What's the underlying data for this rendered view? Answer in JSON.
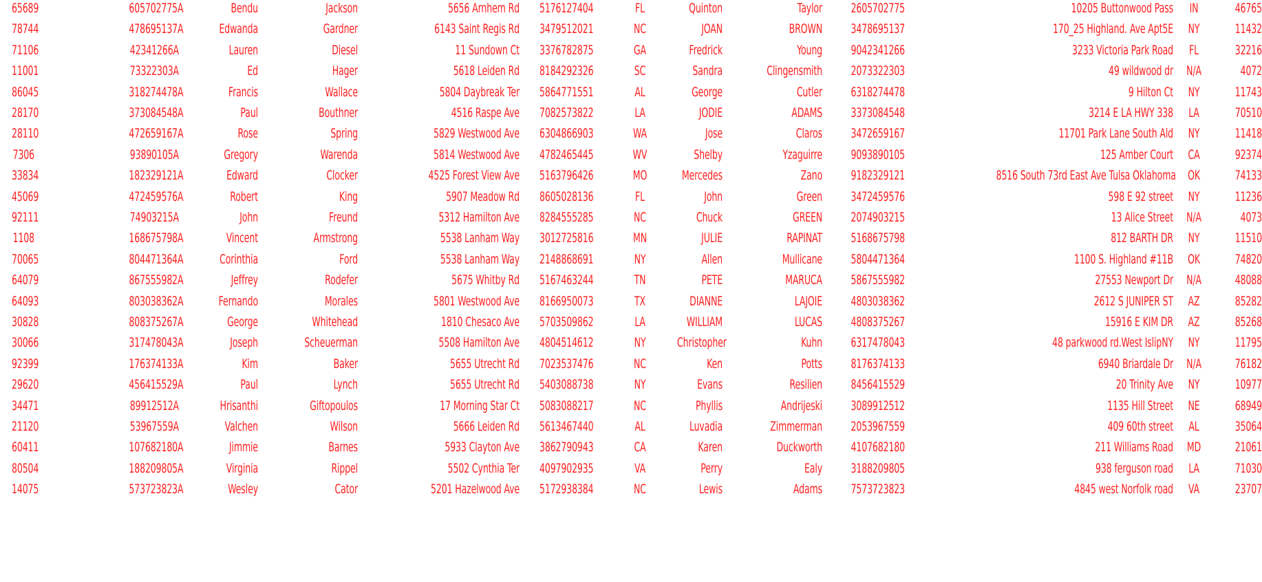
{
  "sheet": {
    "text_color": "#ff1f1f",
    "background": "#ffffff",
    "rows": [
      [
        "65689",
        "605702775A",
        "Bendu",
        "Jackson",
        "5656 Arnhem Rd",
        "5176127404",
        "FL",
        "Quinton",
        "Taylor",
        "2605702775",
        "10205 Buttonwood Pass",
        "IN",
        "46765"
      ],
      [
        "78744",
        "478695137A",
        "Edwanda",
        "Gardner",
        "6143 Saint Regis Rd",
        "3479512021",
        "NC",
        "JOAN",
        "BROWN",
        "3478695137",
        "170_25 Highland. Ave Apt5E",
        "NY",
        "11432"
      ],
      [
        "71106",
        "42341266A",
        "Lauren",
        "Diesel",
        "11 Sundown Ct",
        "3376782875",
        "GA",
        "Fredrick",
        "Young",
        "9042341266",
        "3233 Victoria Park Road",
        "FL",
        "32216"
      ],
      [
        "11001",
        "73322303A",
        "Ed",
        "Hager",
        "5618 Leiden Rd",
        "8184292326",
        "SC",
        "Sandra",
        "Clingensmith",
        "2073322303",
        "49 wildwood dr",
        "N/A",
        "4072"
      ],
      [
        "86045",
        "318274478A",
        "Francis",
        "Wallace",
        "5804 Daybreak Ter",
        "5864771551",
        "AL",
        "George",
        "Cutler",
        "6318274478",
        "9 Hilton Ct",
        "NY",
        "11743"
      ],
      [
        "28170",
        "373084548A",
        "Paul",
        "Bouthner",
        "4516 Raspe Ave",
        "7082573822",
        "LA",
        "JODIE",
        "ADAMS",
        "3373084548",
        "3214 E LA HWY 338",
        "LA",
        "70510"
      ],
      [
        "28110",
        "472659167A",
        "Rose",
        "Spring",
        "5829 Westwood Ave",
        "6304866903",
        "WA",
        "Jose",
        "Claros",
        "3472659167",
        "11701 Park Lane South  Ald",
        "NY",
        "11418"
      ],
      [
        "7306",
        "93890105A",
        "Gregory",
        "Warenda",
        "5814 Westwood Ave",
        "4782465445",
        "WV",
        "Shelby",
        "Yzaguirre",
        "9093890105",
        "125 Amber Court",
        "CA",
        "92374"
      ],
      [
        "33834",
        "182329121A",
        "Edward",
        "Clocker",
        "4525 Forest View Ave",
        "5163796426",
        "MO",
        "Mercedes",
        "Zano",
        "9182329121",
        "8516 South 73rd East Ave  Tulsa Oklahoma",
        "OK",
        "74133"
      ],
      [
        "45069",
        "472459576A",
        "Robert",
        "King",
        "5907 Meadow Rd",
        "8605028136",
        "FL",
        "John",
        "Green",
        "3472459576",
        "598 E 92 street",
        "NY",
        "11236"
      ],
      [
        "92111",
        "74903215A",
        "John",
        "Freund",
        "5312 Hamilton Ave",
        "8284555285",
        "NC",
        "Chuck",
        "GREEN",
        "2074903215",
        "13 Alice Street",
        "N/A",
        "4073"
      ],
      [
        "1108",
        "168675798A",
        "Vincent",
        "Armstrong",
        "5538 Lanham Way",
        "3012725816",
        "MN",
        "JULIE",
        "RAPINAT",
        "5168675798",
        "812 BARTH DR",
        "NY",
        "11510"
      ],
      [
        "70065",
        "804471364A",
        "Corinthia",
        "Ford",
        "5538 Lanham Way",
        "2148868691",
        "NY",
        "Allen",
        "Mullicane",
        "5804471364",
        "1100 S. Highland #11B",
        "OK",
        "74820"
      ],
      [
        "64079",
        "867555982A",
        "Jeffrey",
        "Rodefer",
        "5675 Whitby Rd",
        "5167463244",
        "TN",
        "PETE",
        "MARUCA",
        "5867555982",
        "27553 Newport Dr",
        "N/A",
        "48088"
      ],
      [
        "64093",
        "803038362A",
        "Fernando",
        "Morales",
        "5801 Westwood Ave",
        "8166950073",
        "TX",
        "DIANNE",
        "LAJOIE",
        "4803038362",
        "2612 S JUNIPER ST",
        "AZ",
        "85282"
      ],
      [
        "30828",
        "808375267A",
        "George",
        "Whitehead",
        "1810 Chesaco Ave",
        "5703509862",
        "LA",
        "WILLIAM",
        "LUCAS",
        "4808375267",
        "15916 E KIM DR",
        "AZ",
        "85268"
      ],
      [
        "30066",
        "317478043A",
        "Joseph",
        "Scheuerman",
        "5508 Hamilton Ave",
        "4804514612",
        "NY",
        "Christopher",
        "Kuhn",
        "6317478043",
        "48 parkwood rd.West IslipNY",
        "NY",
        "11795"
      ],
      [
        "92399",
        "176374133A",
        "Kim",
        "Baker",
        "5655 Utrecht Rd",
        "7023537476",
        "NC",
        "Ken",
        "Potts",
        "8176374133",
        "6940 Briardale Dr",
        "N/A",
        "76182"
      ],
      [
        "29620",
        "456415529A",
        "Paul",
        "Lynch",
        "5655 Utrecht Rd",
        "5403088738",
        "NY",
        "Evans",
        "Resilien",
        "8456415529",
        "20 Trinity Ave",
        "NY",
        "10977"
      ],
      [
        "34471",
        "89912512A",
        "Hrisanthi",
        "Giftopoulos",
        "17 Morning Star Ct",
        "5083088217",
        "NC",
        "Phyllis",
        "Andrijeski",
        "3089912512",
        "1135 Hill Street",
        "NE",
        "68949"
      ],
      [
        "21120",
        "53967559A",
        "Valchen",
        "Wilson",
        "5666 Leiden Rd",
        "5613467440",
        "AL",
        "Luvadia",
        "Zimmerman",
        "2053967559",
        "409 60th street",
        "AL",
        "35064"
      ],
      [
        "60411",
        "107682180A",
        "Jimmie",
        "Barnes",
        "5933 Clayton Ave",
        "3862790943",
        "CA",
        "Karen",
        "Duckworth",
        "4107682180",
        "211 Williams Road",
        "MD",
        "21061"
      ],
      [
        "80504",
        "188209805A",
        "Virginia",
        "Rippel",
        "5502 Cynthia Ter",
        "4097902935",
        "VA",
        "Perry",
        "Ealy",
        "3188209805",
        "938 ferguson road",
        "LA",
        "71030"
      ],
      [
        "14075",
        "573723823A",
        "Wesley",
        "Cator",
        "5201 Hazelwood Ave",
        "5172938384",
        "NC",
        "Lewis",
        "Adams",
        "7573723823",
        "4845 west Norfolk road",
        "VA",
        "23707"
      ]
    ]
  }
}
